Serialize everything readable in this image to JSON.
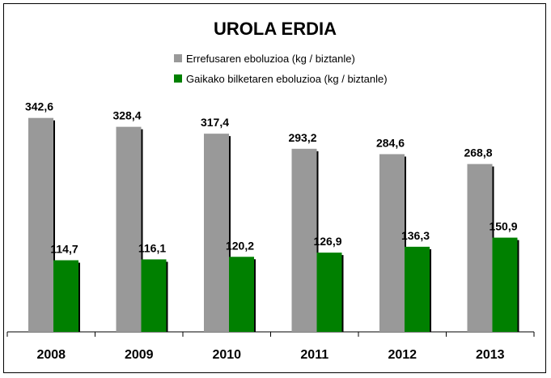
{
  "chart_data": {
    "type": "bar",
    "title": "UROLA ERDIA",
    "categories": [
      "2008",
      "2009",
      "2010",
      "2011",
      "2012",
      "2013"
    ],
    "series": [
      {
        "name": "Errefusaren eboluzioa (kg / biztanle)",
        "color": "#999999",
        "values": [
          342.6,
          328.4,
          317.4,
          293.2,
          284.6,
          268.8
        ],
        "labels": [
          "342,6",
          "328,4",
          "317,4",
          "293,2",
          "284,6",
          "268,8"
        ]
      },
      {
        "name": "Gaikako bilketaren eboluzioa (kg / biztanle)",
        "color": "#008000",
        "values": [
          114.7,
          116.1,
          120.2,
          126.9,
          136.3,
          150.9
        ],
        "labels": [
          "114,7",
          "116,1",
          "120,2",
          "126,9",
          "136,3",
          "150,9"
        ]
      }
    ],
    "ylim": [
      0,
      350
    ],
    "grid": false,
    "legend_position": "top-center",
    "xlabel": "",
    "ylabel": ""
  }
}
